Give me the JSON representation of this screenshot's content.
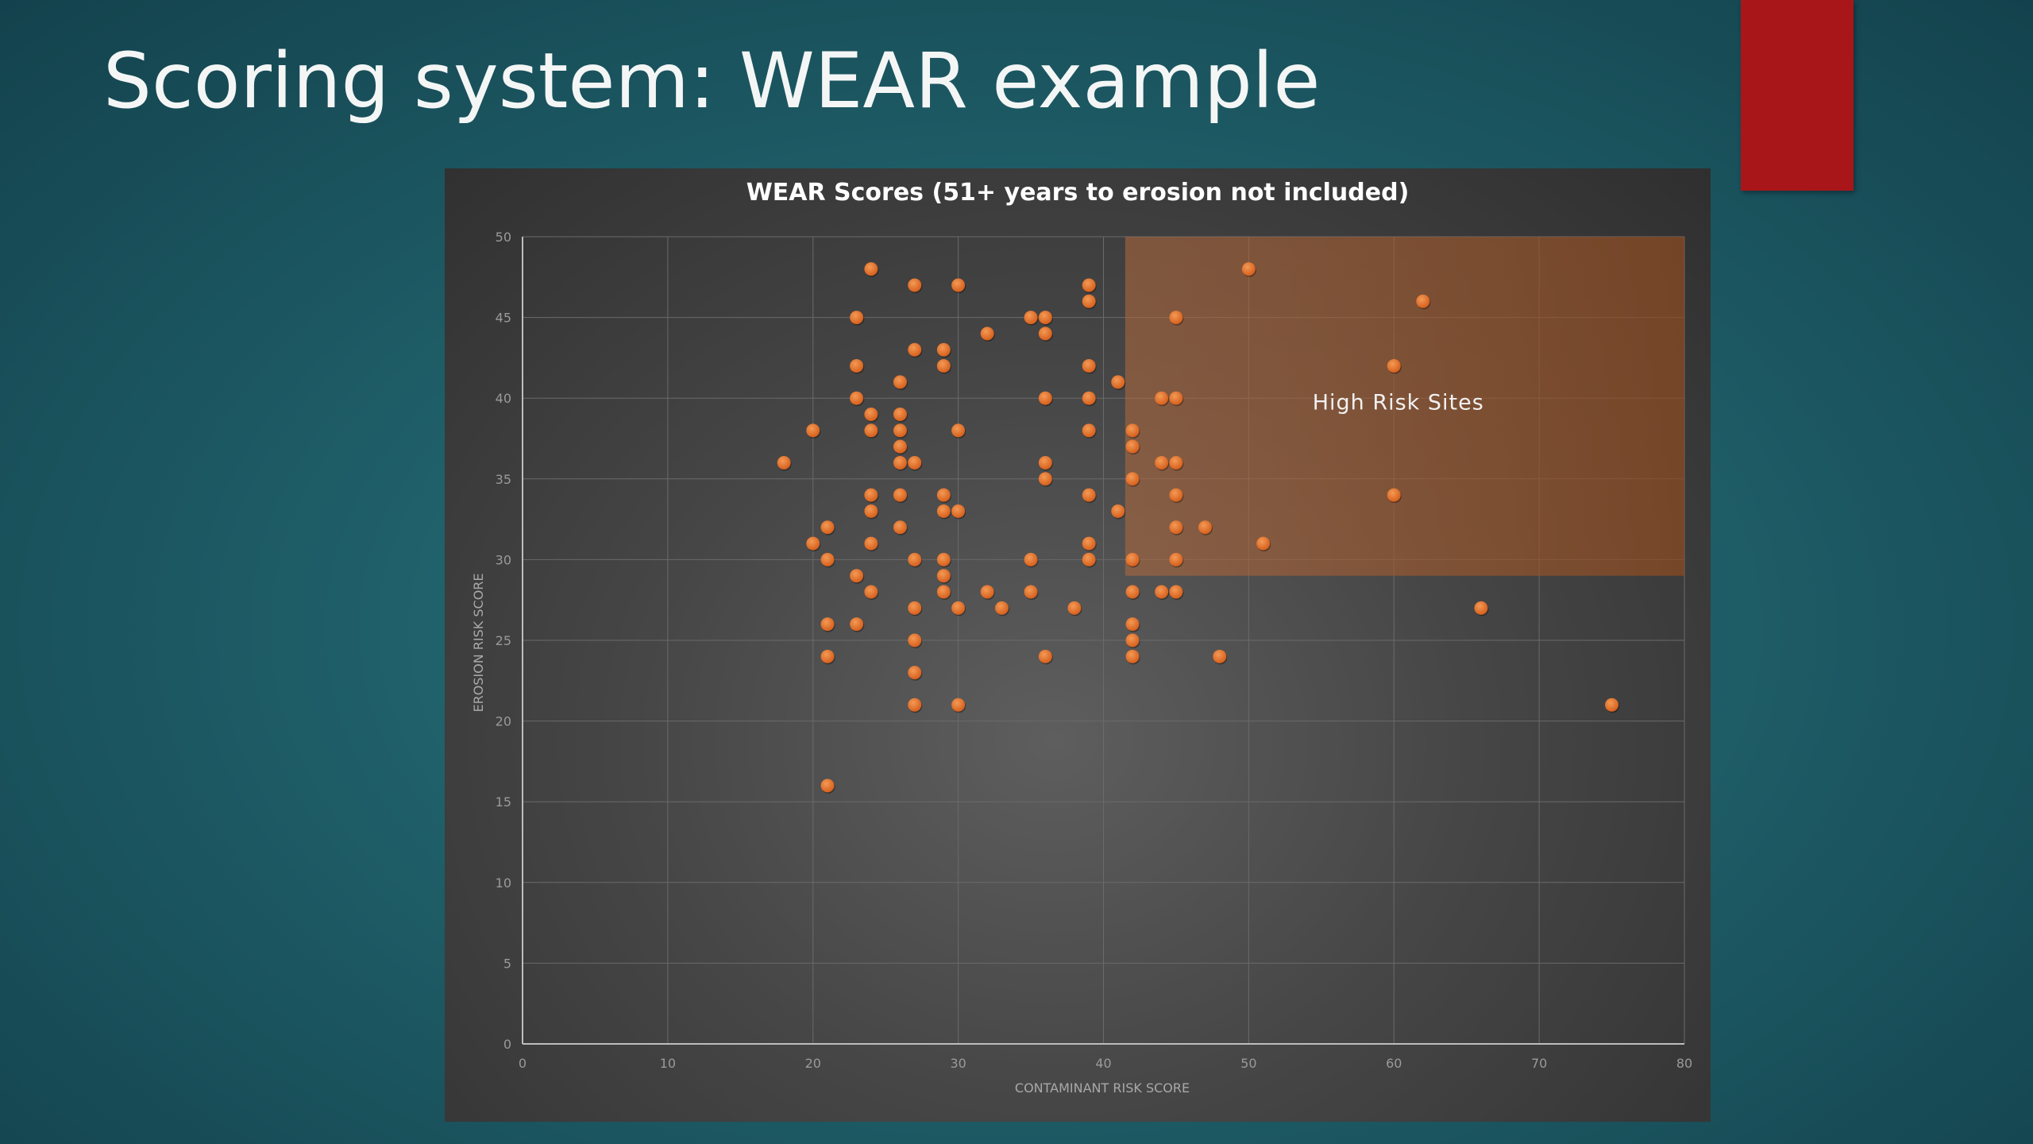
{
  "slide": {
    "title": "Scoring system: WEAR example"
  },
  "colors": {
    "background": "#1f5f69",
    "accent_block": "#a8161a",
    "point": "#e8722a",
    "highlight": "#c4662a",
    "panel": "#464646"
  },
  "chart_data": {
    "type": "scatter",
    "title": "WEAR Scores (51+ years to erosion not included)",
    "xlabel": "CONTAMINANT RISK SCORE",
    "ylabel": "EROSION RISK SCORE",
    "xlim": [
      0,
      80
    ],
    "ylim": [
      0,
      50
    ],
    "x_ticks": [
      0,
      10,
      20,
      30,
      40,
      50,
      60,
      70,
      80
    ],
    "y_ticks": [
      0,
      5,
      10,
      15,
      20,
      25,
      30,
      35,
      40,
      45,
      50
    ],
    "grid": true,
    "annotation": {
      "label": "High Risk Sites",
      "x_range": [
        41.5,
        80
      ],
      "y_range": [
        29,
        50
      ]
    },
    "points": [
      [
        24,
        48
      ],
      [
        27,
        47
      ],
      [
        30,
        47
      ],
      [
        39,
        47
      ],
      [
        50,
        48
      ],
      [
        62,
        46
      ],
      [
        23,
        45
      ],
      [
        35,
        45
      ],
      [
        36,
        45
      ],
      [
        39,
        46
      ],
      [
        45,
        45
      ],
      [
        32,
        44
      ],
      [
        36,
        44
      ],
      [
        27,
        43
      ],
      [
        29,
        43
      ],
      [
        23,
        42
      ],
      [
        29,
        42
      ],
      [
        39,
        42
      ],
      [
        60,
        42
      ],
      [
        26,
        41
      ],
      [
        41,
        41
      ],
      [
        23,
        40
      ],
      [
        36,
        40
      ],
      [
        39,
        40
      ],
      [
        44,
        40
      ],
      [
        45,
        40
      ],
      [
        24,
        39
      ],
      [
        26,
        39
      ],
      [
        20,
        38
      ],
      [
        24,
        38
      ],
      [
        26,
        38
      ],
      [
        30,
        38
      ],
      [
        39,
        38
      ],
      [
        42,
        38
      ],
      [
        26,
        37
      ],
      [
        42,
        37
      ],
      [
        18,
        36
      ],
      [
        26,
        36
      ],
      [
        27,
        36
      ],
      [
        36,
        36
      ],
      [
        44,
        36
      ],
      [
        45,
        36
      ],
      [
        36,
        35
      ],
      [
        42,
        35
      ],
      [
        24,
        34
      ],
      [
        26,
        34
      ],
      [
        29,
        34
      ],
      [
        39,
        34
      ],
      [
        45,
        34
      ],
      [
        60,
        34
      ],
      [
        24,
        33
      ],
      [
        29,
        33
      ],
      [
        30,
        33
      ],
      [
        41,
        33
      ],
      [
        21,
        32
      ],
      [
        26,
        32
      ],
      [
        45,
        32
      ],
      [
        47,
        32
      ],
      [
        20,
        31
      ],
      [
        24,
        31
      ],
      [
        39,
        31
      ],
      [
        51,
        31
      ],
      [
        21,
        30
      ],
      [
        27,
        30
      ],
      [
        29,
        30
      ],
      [
        35,
        30
      ],
      [
        39,
        30
      ],
      [
        42,
        30
      ],
      [
        45,
        30
      ],
      [
        23,
        29
      ],
      [
        29,
        29
      ],
      [
        24,
        28
      ],
      [
        29,
        28
      ],
      [
        32,
        28
      ],
      [
        35,
        28
      ],
      [
        42,
        28
      ],
      [
        44,
        28
      ],
      [
        45,
        28
      ],
      [
        27,
        27
      ],
      [
        30,
        27
      ],
      [
        33,
        27
      ],
      [
        38,
        27
      ],
      [
        66,
        27
      ],
      [
        21,
        26
      ],
      [
        23,
        26
      ],
      [
        42,
        26
      ],
      [
        27,
        25
      ],
      [
        42,
        25
      ],
      [
        21,
        24
      ],
      [
        36,
        24
      ],
      [
        42,
        24
      ],
      [
        48,
        24
      ],
      [
        27,
        23
      ],
      [
        27,
        21
      ],
      [
        30,
        21
      ],
      [
        75,
        21
      ],
      [
        21,
        16
      ]
    ]
  }
}
